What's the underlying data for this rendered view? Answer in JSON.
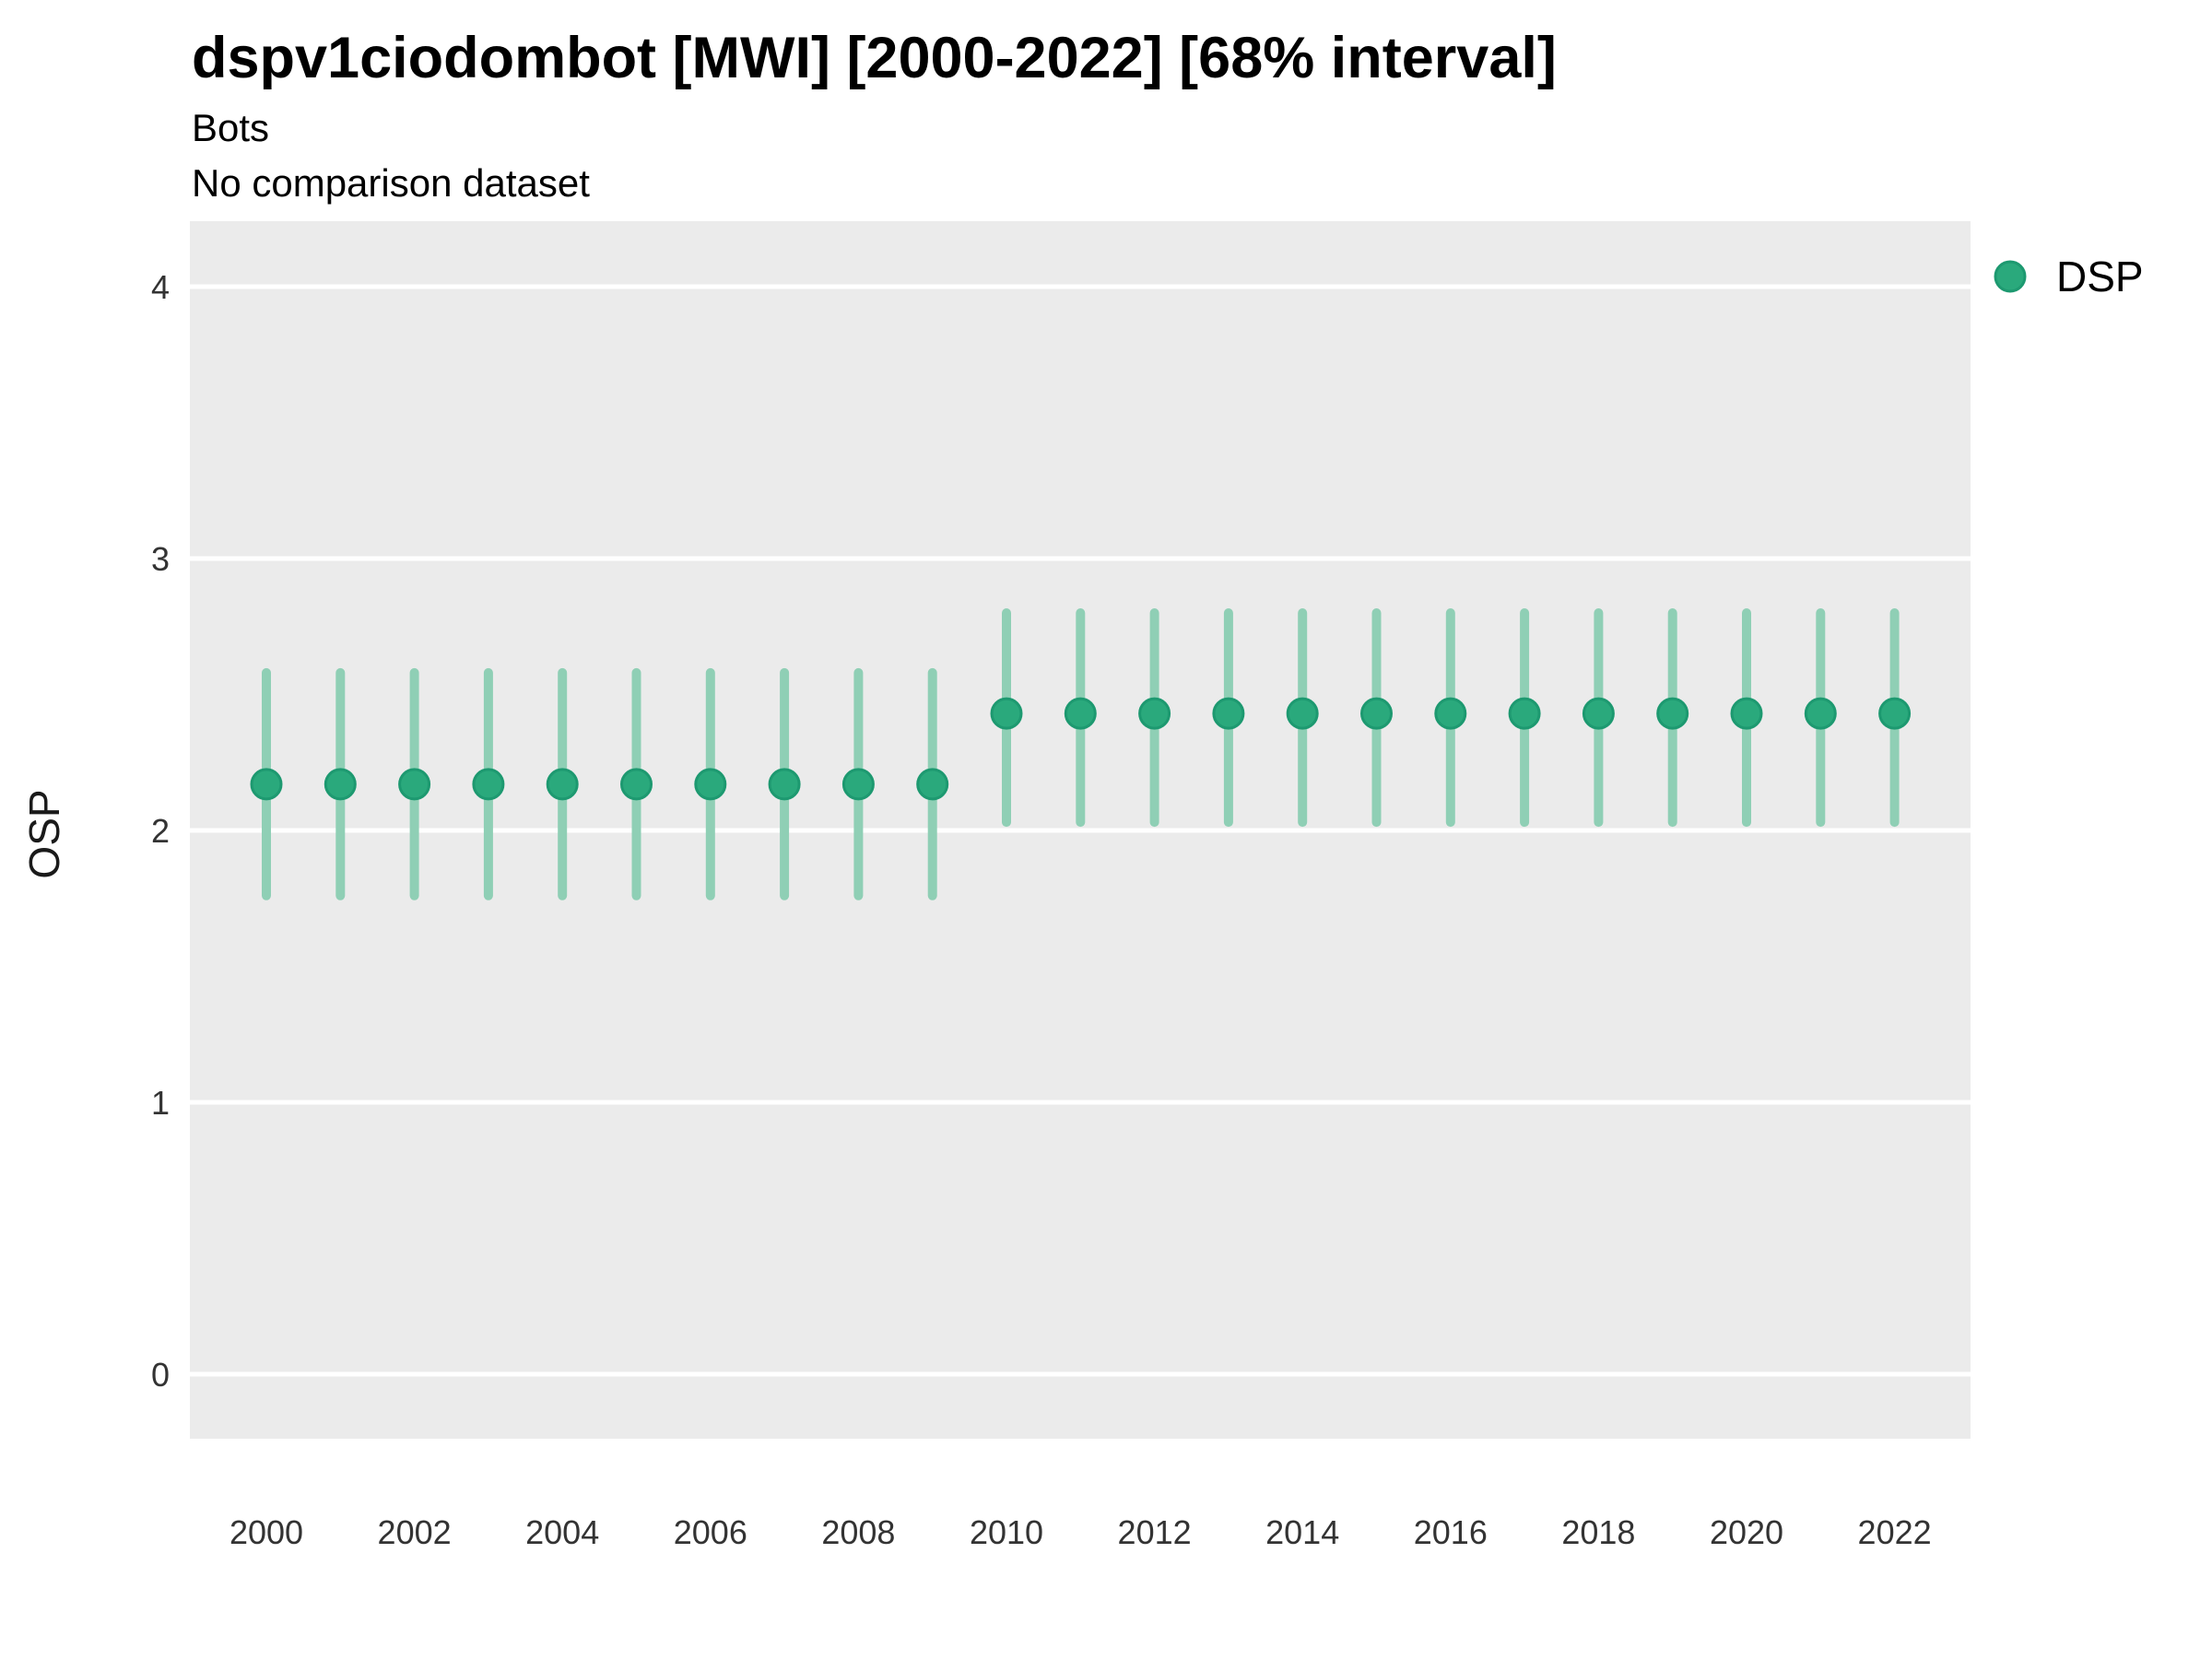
{
  "title": "dspv1ciodombot [MWI] [2000-2022] [68% interval]",
  "subtitle_line1": "Bots",
  "subtitle_line2": "No comparison dataset",
  "ylabel": "OSP",
  "legend": {
    "position": "top-right",
    "items": [
      {
        "label": "DSP",
        "color": "#2AA97C"
      }
    ]
  },
  "colors": {
    "point": "#2AA97C",
    "point_border": "#1D9970",
    "interval": "#8FCFB5",
    "panel_bg": "#EBEBEB",
    "gridline": "#FFFFFF",
    "axis_text": "#333333",
    "title_text": "#000000"
  },
  "chart_data": {
    "type": "scatter",
    "subtype": "pointrange",
    "title": "dspv1ciodombot [MWI] [2000-2022] [68% interval]",
    "subtitle": "Bots",
    "note": "No comparison dataset",
    "interval_label": "68% interval",
    "xlabel": "",
    "ylabel": "OSP",
    "ylim": [
      -0.24,
      4.24
    ],
    "y_ticks": [
      0,
      1,
      2,
      3,
      4
    ],
    "x_ticks": [
      2000,
      2002,
      2004,
      2006,
      2008,
      2010,
      2012,
      2014,
      2016,
      2018,
      2020,
      2022
    ],
    "grid": "white major gridlines on grey panel, no minor grid, no axis ticks",
    "legend_entries": [
      "DSP"
    ],
    "legend_position": "top-right",
    "series": [
      {
        "name": "DSP",
        "points": [
          {
            "year": 2000,
            "value": 2.17,
            "lower": 1.76,
            "upper": 2.58
          },
          {
            "year": 2001,
            "value": 2.17,
            "lower": 1.76,
            "upper": 2.58
          },
          {
            "year": 2002,
            "value": 2.17,
            "lower": 1.76,
            "upper": 2.58
          },
          {
            "year": 2003,
            "value": 2.17,
            "lower": 1.76,
            "upper": 2.58
          },
          {
            "year": 2004,
            "value": 2.17,
            "lower": 1.76,
            "upper": 2.58
          },
          {
            "year": 2005,
            "value": 2.17,
            "lower": 1.76,
            "upper": 2.58
          },
          {
            "year": 2006,
            "value": 2.17,
            "lower": 1.76,
            "upper": 2.58
          },
          {
            "year": 2007,
            "value": 2.17,
            "lower": 1.76,
            "upper": 2.58
          },
          {
            "year": 2008,
            "value": 2.17,
            "lower": 1.76,
            "upper": 2.58
          },
          {
            "year": 2009,
            "value": 2.17,
            "lower": 1.76,
            "upper": 2.58
          },
          {
            "year": 2010,
            "value": 2.43,
            "lower": 2.03,
            "upper": 2.8
          },
          {
            "year": 2011,
            "value": 2.43,
            "lower": 2.03,
            "upper": 2.8
          },
          {
            "year": 2012,
            "value": 2.43,
            "lower": 2.03,
            "upper": 2.8
          },
          {
            "year": 2013,
            "value": 2.43,
            "lower": 2.03,
            "upper": 2.8
          },
          {
            "year": 2014,
            "value": 2.43,
            "lower": 2.03,
            "upper": 2.8
          },
          {
            "year": 2015,
            "value": 2.43,
            "lower": 2.03,
            "upper": 2.8
          },
          {
            "year": 2016,
            "value": 2.43,
            "lower": 2.03,
            "upper": 2.8
          },
          {
            "year": 2017,
            "value": 2.43,
            "lower": 2.03,
            "upper": 2.8
          },
          {
            "year": 2018,
            "value": 2.43,
            "lower": 2.03,
            "upper": 2.8
          },
          {
            "year": 2019,
            "value": 2.43,
            "lower": 2.03,
            "upper": 2.8
          },
          {
            "year": 2020,
            "value": 2.43,
            "lower": 2.03,
            "upper": 2.8
          },
          {
            "year": 2021,
            "value": 2.43,
            "lower": 2.03,
            "upper": 2.8
          },
          {
            "year": 2022,
            "value": 2.43,
            "lower": 2.03,
            "upper": 2.8
          }
        ]
      }
    ]
  }
}
